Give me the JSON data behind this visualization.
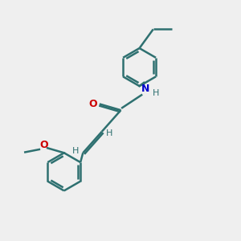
{
  "background_color": "#efefef",
  "bond_color": "#1a1a1a",
  "teal_color": "#2e7070",
  "N_color": "#0000cc",
  "O_color": "#cc0000",
  "lw": 1.8,
  "ring_r": 0.55,
  "xlim": [
    0,
    6
  ],
  "ylim": [
    0,
    7
  ]
}
